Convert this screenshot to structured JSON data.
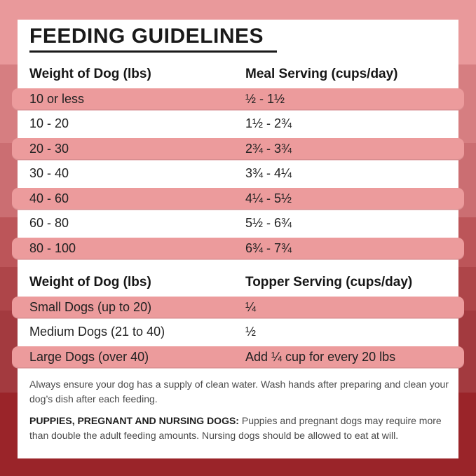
{
  "title": "FEEDING GUIDELINES",
  "meal_table": {
    "col1_header": "Weight of Dog (lbs)",
    "col2_header": "Meal Serving (cups/day)",
    "rows": [
      {
        "weight": "10 or less",
        "serving": "½ - 1½"
      },
      {
        "weight": "10 - 20",
        "serving": "1½ - 2¾"
      },
      {
        "weight": "20 - 30",
        "serving": "2¾ - 3¾"
      },
      {
        "weight": "30 - 40",
        "serving": "3¾ - 4¼"
      },
      {
        "weight": "40 - 60",
        "serving": "4¼ - 5½"
      },
      {
        "weight": "60 - 80",
        "serving": "5½ - 6¾"
      },
      {
        "weight": "80 - 100",
        "serving": "6¾ - 7¾"
      }
    ]
  },
  "topper_table": {
    "col1_header": "Weight of Dog (lbs)",
    "col2_header": "Topper Serving (cups/day)",
    "rows": [
      {
        "weight": "Small Dogs (up to 20)",
        "serving": "¼"
      },
      {
        "weight": "Medium Dogs (21 to 40)",
        "serving": "½"
      },
      {
        "weight": "Large Dogs (over 40)",
        "serving": "Add ¼ cup for every 20 lbs"
      }
    ]
  },
  "notes": {
    "water": "Always ensure your dog has a supply of clean water. Wash hands after preparing and clean your dog’s dish after each feeding.",
    "special_bold": "PUPPIES, PREGNANT AND NURSING DOGS:",
    "special_rest": " Puppies and pregnant dogs may require more than double the adult feeding amounts. Nursing dogs should be allowed to eat at will."
  },
  "colors": {
    "row_highlight": "#EC9B9C",
    "background_top": "#E9999B",
    "background_bottom": "#9A2429",
    "card_background": "#FFFFFF",
    "title_color": "#1A1A1A"
  }
}
